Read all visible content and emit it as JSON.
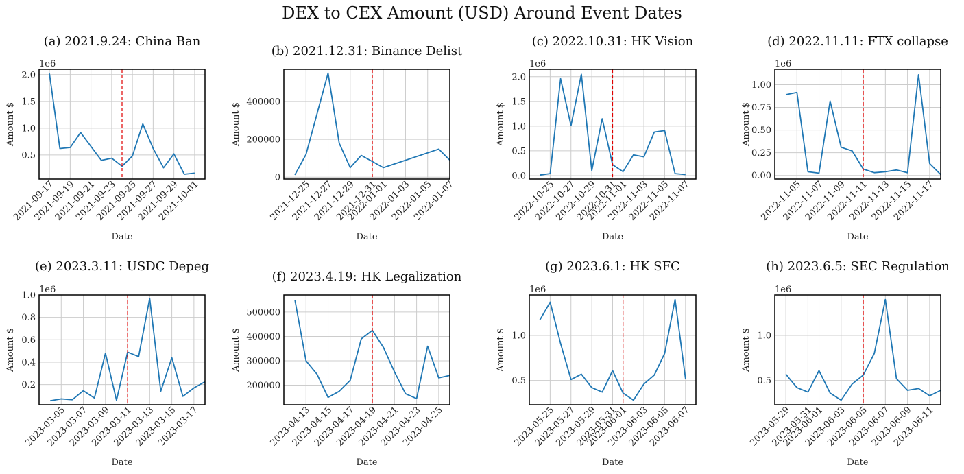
{
  "figure": {
    "title": "DEX to CEX Amount (USD) Around Event Dates"
  },
  "colors": {
    "line": "#1f77b4",
    "event_line": "#e00000",
    "grid": "#cccccc",
    "frame": "#000000",
    "text": "#222222"
  },
  "chart_data": [
    {
      "type": "line",
      "title": "(a) 2021.9.24: China Ban",
      "xlabel": "Date",
      "ylabel": "Amount $",
      "exponent": "1e6",
      "xlim": [
        "2021-09-16",
        "2021-10-02"
      ],
      "ylim": [
        50000,
        2100000
      ],
      "xticks": [
        "2021-09-17",
        "2021-09-19",
        "2021-09-21",
        "2021-09-23",
        "2021-09-25",
        "2021-09-27",
        "2021-09-29",
        "2021-10-01"
      ],
      "yticks": [
        {
          "value": 500000,
          "label": "0.5"
        },
        {
          "value": 1000000,
          "label": "1.0"
        },
        {
          "value": 1500000,
          "label": "1.5"
        },
        {
          "value": 2000000,
          "label": "2.0"
        }
      ],
      "event_date": "2021-09-24",
      "x": [
        "2021-09-17",
        "2021-09-18",
        "2021-09-19",
        "2021-09-20",
        "2021-09-21",
        "2021-09-22",
        "2021-09-23",
        "2021-09-24",
        "2021-09-25",
        "2021-09-26",
        "2021-09-27",
        "2021-09-28",
        "2021-09-29",
        "2021-09-30",
        "2021-10-01"
      ],
      "values": [
        2020000,
        620000,
        640000,
        920000,
        660000,
        400000,
        440000,
        290000,
        480000,
        1080000,
        620000,
        260000,
        520000,
        140000,
        160000
      ]
    },
    {
      "type": "line",
      "title": "(b) 2021.12.31: Binance Delist",
      "xlabel": "Date",
      "ylabel": "Amount $",
      "exponent": "",
      "xlim": [
        "2021-12-23",
        "2022-01-07"
      ],
      "ylim": [
        -10000,
        570000
      ],
      "xticks": [
        "2021-12-25",
        "2021-12-27",
        "2021-12-29",
        "2021-12-31",
        "2022-01-01",
        "2022-01-03",
        "2022-01-05",
        "2022-01-07"
      ],
      "yticks": [
        {
          "value": 0,
          "label": "0"
        },
        {
          "value": 200000,
          "label": "200000"
        },
        {
          "value": 400000,
          "label": "400000"
        }
      ],
      "event_date": "2021-12-31",
      "x": [
        "2021-12-24",
        "2021-12-25",
        "2021-12-27",
        "2021-12-28",
        "2021-12-29",
        "2021-12-30",
        "2022-01-01",
        "2022-01-06",
        "2022-01-07"
      ],
      "values": [
        12000,
        120000,
        550000,
        180000,
        50000,
        115000,
        50000,
        148000,
        90000
      ]
    },
    {
      "type": "line",
      "title": "(c) 2022.10.31: HK Vision",
      "xlabel": "Date",
      "ylabel": "Amount $",
      "exponent": "1e6",
      "xlim": [
        "2022-10-23",
        "2022-11-08"
      ],
      "ylim": [
        -70000,
        2150000
      ],
      "xticks": [
        "2022-10-25",
        "2022-10-27",
        "2022-10-29",
        "2022-10-31",
        "2022-11-01",
        "2022-11-03",
        "2022-11-05",
        "2022-11-07"
      ],
      "yticks": [
        {
          "value": 0,
          "label": "0.0"
        },
        {
          "value": 500000,
          "label": "0.5"
        },
        {
          "value": 1000000,
          "label": "1.0"
        },
        {
          "value": 1500000,
          "label": "1.5"
        },
        {
          "value": 2000000,
          "label": "2.0"
        }
      ],
      "event_date": "2022-10-31",
      "x": [
        "2022-10-24",
        "2022-10-25",
        "2022-10-26",
        "2022-10-27",
        "2022-10-28",
        "2022-10-29",
        "2022-10-30",
        "2022-10-31",
        "2022-11-01",
        "2022-11-02",
        "2022-11-03",
        "2022-11-04",
        "2022-11-05",
        "2022-11-06",
        "2022-11-07"
      ],
      "values": [
        10000,
        40000,
        1960000,
        1010000,
        2050000,
        100000,
        1150000,
        220000,
        80000,
        420000,
        380000,
        880000,
        910000,
        40000,
        20000
      ]
    },
    {
      "type": "line",
      "title": "(d) 2022.11.11: FTX collapse",
      "xlabel": "Date",
      "ylabel": "Amount $",
      "exponent": "1e6",
      "xlim": [
        "2022-11-03",
        "2022-11-18"
      ],
      "ylim": [
        -40000,
        1170000
      ],
      "xticks": [
        "2022-11-05",
        "2022-11-07",
        "2022-11-09",
        "2022-11-11",
        "2022-11-13",
        "2022-11-15",
        "2022-11-17"
      ],
      "yticks": [
        {
          "value": 0,
          "label": "0.00"
        },
        {
          "value": 250000,
          "label": "0.25"
        },
        {
          "value": 500000,
          "label": "0.50"
        },
        {
          "value": 750000,
          "label": "0.75"
        },
        {
          "value": 1000000,
          "label": "1.00"
        }
      ],
      "event_date": "2022-11-11",
      "x": [
        "2022-11-04",
        "2022-11-05",
        "2022-11-06",
        "2022-11-07",
        "2022-11-08",
        "2022-11-09",
        "2022-11-10",
        "2022-11-11",
        "2022-11-12",
        "2022-11-13",
        "2022-11-14",
        "2022-11-15",
        "2022-11-16",
        "2022-11-17",
        "2022-11-18"
      ],
      "values": [
        890000,
        915000,
        40000,
        25000,
        820000,
        310000,
        270000,
        70000,
        30000,
        40000,
        60000,
        30000,
        1110000,
        130000,
        10000
      ]
    },
    {
      "type": "line",
      "title": "(e) 2023.3.11: USDC Depeg",
      "xlabel": "Date",
      "ylabel": "Amount $",
      "exponent": "1e6",
      "xlim": [
        "2023-03-03",
        "2023-03-18"
      ],
      "ylim": [
        20000,
        1000000
      ],
      "xticks": [
        "2023-03-05",
        "2023-03-07",
        "2023-03-09",
        "2023-03-11",
        "2023-03-13",
        "2023-03-15",
        "2023-03-17"
      ],
      "yticks": [
        {
          "value": 200000,
          "label": "0.2"
        },
        {
          "value": 400000,
          "label": "0.4"
        },
        {
          "value": 600000,
          "label": "0.6"
        },
        {
          "value": 800000,
          "label": "0.8"
        },
        {
          "value": 1000000,
          "label": "1.0"
        }
      ],
      "event_date": "2023-03-11",
      "x": [
        "2023-03-04",
        "2023-03-05",
        "2023-03-06",
        "2023-03-07",
        "2023-03-08",
        "2023-03-09",
        "2023-03-10",
        "2023-03-11",
        "2023-03-12",
        "2023-03-13",
        "2023-03-14",
        "2023-03-15",
        "2023-03-16",
        "2023-03-17",
        "2023-03-18"
      ],
      "values": [
        55000,
        72000,
        65000,
        145000,
        80000,
        480000,
        60000,
        490000,
        450000,
        970000,
        140000,
        440000,
        95000,
        170000,
        225000
      ]
    },
    {
      "type": "line",
      "title": "(f) 2023.4.19: HK Legalization",
      "xlabel": "Date",
      "ylabel": "Amount $",
      "exponent": "",
      "xlim": [
        "2023-04-11",
        "2023-04-26"
      ],
      "ylim": [
        120000,
        570000
      ],
      "xticks": [
        "2023-04-13",
        "2023-04-15",
        "2023-04-17",
        "2023-04-19",
        "2023-04-21",
        "2023-04-23",
        "2023-04-25"
      ],
      "yticks": [
        {
          "value": 200000,
          "label": "200000"
        },
        {
          "value": 300000,
          "label": "300000"
        },
        {
          "value": 400000,
          "label": "400000"
        },
        {
          "value": 500000,
          "label": "500000"
        }
      ],
      "event_date": "2023-04-19",
      "x": [
        "2023-04-12",
        "2023-04-13",
        "2023-04-14",
        "2023-04-15",
        "2023-04-16",
        "2023-04-17",
        "2023-04-18",
        "2023-04-19",
        "2023-04-20",
        "2023-04-21",
        "2023-04-22",
        "2023-04-23",
        "2023-04-24",
        "2023-04-25",
        "2023-04-26"
      ],
      "values": [
        550000,
        300000,
        245000,
        150000,
        175000,
        220000,
        390000,
        425000,
        355000,
        255000,
        165000,
        145000,
        360000,
        230000,
        240000
      ]
    },
    {
      "type": "line",
      "title": "(g) 2023.6.1: HK SFC",
      "xlabel": "Date",
      "ylabel": "Amount $",
      "exponent": "1e6",
      "xlim": [
        "2023-05-23",
        "2023-06-08"
      ],
      "ylim": [
        230000,
        1450000
      ],
      "xticks": [
        "2023-05-25",
        "2023-05-27",
        "2023-05-29",
        "2023-05-31",
        "2023-06-01",
        "2023-06-03",
        "2023-06-05",
        "2023-06-07"
      ],
      "yticks": [
        {
          "value": 500000,
          "label": "0.5"
        },
        {
          "value": 1000000,
          "label": "1.0"
        }
      ],
      "event_date": "2023-06-01",
      "x": [
        "2023-05-24",
        "2023-05-25",
        "2023-05-26",
        "2023-05-27",
        "2023-05-28",
        "2023-05-29",
        "2023-05-30",
        "2023-05-31",
        "2023-06-01",
        "2023-06-02",
        "2023-06-03",
        "2023-06-04",
        "2023-06-05",
        "2023-06-06",
        "2023-06-07"
      ],
      "values": [
        1170000,
        1370000,
        910000,
        510000,
        570000,
        420000,
        370000,
        610000,
        360000,
        280000,
        460000,
        560000,
        800000,
        1400000,
        520000
      ]
    },
    {
      "type": "line",
      "title": "(h) 2023.6.5: SEC Regulation",
      "xlabel": "Date",
      "ylabel": "Amount $",
      "exponent": "1e6",
      "xlim": [
        "2023-05-28",
        "2023-06-12"
      ],
      "ylim": [
        230000,
        1450000
      ],
      "xticks": [
        "2023-05-29",
        "2023-05-31",
        "2023-06-01",
        "2023-06-03",
        "2023-06-05",
        "2023-06-07",
        "2023-06-09",
        "2023-06-11"
      ],
      "yticks": [
        {
          "value": 500000,
          "label": "0.5"
        },
        {
          "value": 1000000,
          "label": "1.0"
        }
      ],
      "event_date": "2023-06-05",
      "x": [
        "2023-05-29",
        "2023-05-30",
        "2023-05-31",
        "2023-06-01",
        "2023-06-02",
        "2023-06-03",
        "2023-06-04",
        "2023-06-05",
        "2023-06-06",
        "2023-06-07",
        "2023-06-08",
        "2023-06-09",
        "2023-06-10",
        "2023-06-11",
        "2023-06-12"
      ],
      "values": [
        570000,
        420000,
        370000,
        610000,
        360000,
        280000,
        460000,
        560000,
        800000,
        1400000,
        520000,
        390000,
        410000,
        330000,
        390000
      ]
    }
  ]
}
